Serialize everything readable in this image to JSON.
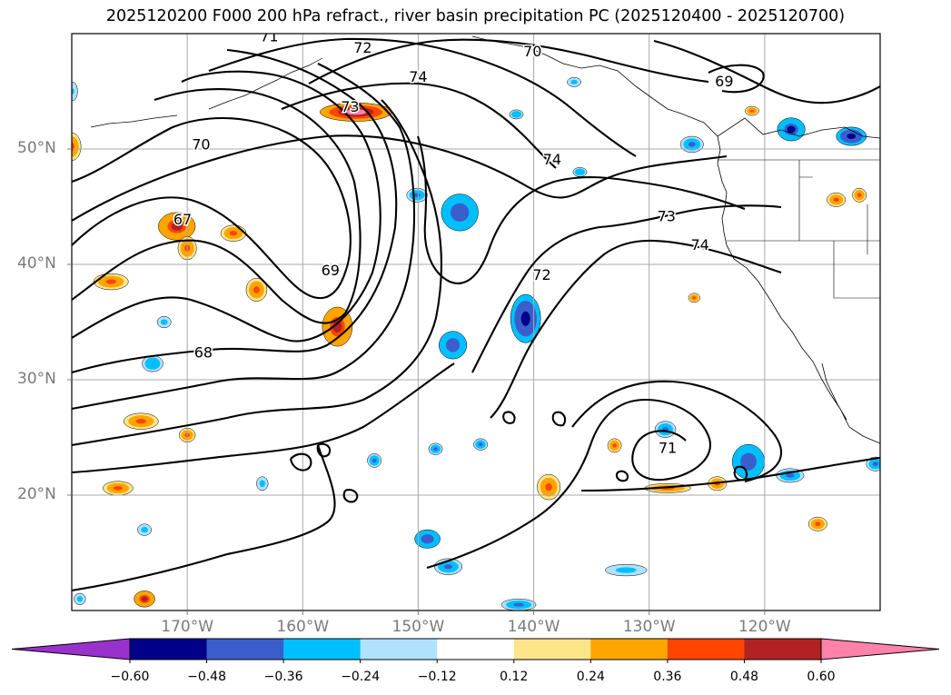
{
  "title": "2025120200 F000 200 hPa refract., river basin precipitation PC (2025120400 - 2025120700)",
  "chart_data": {
    "type": "contour-map",
    "map_extent": {
      "lon": [
        -180,
        -110
      ],
      "lat": [
        10,
        60
      ]
    },
    "lat_ticks": [
      {
        "value": 50,
        "label": "50°N"
      },
      {
        "value": 40,
        "label": "40°N"
      },
      {
        "value": 30,
        "label": "30°N"
      },
      {
        "value": 20,
        "label": "20°N"
      }
    ],
    "lon_ticks": [
      {
        "value": -170,
        "label": "170°W"
      },
      {
        "value": -160,
        "label": "160°W"
      },
      {
        "value": -150,
        "label": "150°W"
      },
      {
        "value": -140,
        "label": "140°W"
      },
      {
        "value": -130,
        "label": "130°W"
      },
      {
        "value": -120,
        "label": "120°W"
      }
    ],
    "refractivity_contours": {
      "variable": "200 hPa refractivity",
      "labels": [
        {
          "text": "71",
          "lon": -162.9,
          "lat": 59.7
        },
        {
          "text": "72",
          "lon": -154.8,
          "lat": 58.7
        },
        {
          "text": "70",
          "lon": -140.1,
          "lat": 58.4
        },
        {
          "text": "74",
          "lon": -150.0,
          "lat": 56.2
        },
        {
          "text": "69",
          "lon": -123.5,
          "lat": 55.8
        },
        {
          "text": "73",
          "lon": -155.9,
          "lat": 53.6
        },
        {
          "text": "70",
          "lon": -168.8,
          "lat": 50.3
        },
        {
          "text": "74",
          "lon": -138.4,
          "lat": 49.0
        },
        {
          "text": "67",
          "lon": -170.4,
          "lat": 43.8
        },
        {
          "text": "73",
          "lon": -128.5,
          "lat": 44.1
        },
        {
          "text": "74",
          "lon": -125.6,
          "lat": 41.6
        },
        {
          "text": "69",
          "lon": -157.6,
          "lat": 39.4
        },
        {
          "text": "72",
          "lon": -139.3,
          "lat": 39.0
        },
        {
          "text": "68",
          "lon": -168.6,
          "lat": 32.3
        },
        {
          "text": "71",
          "lon": -128.4,
          "lat": 24.0
        }
      ]
    },
    "precip_pc": {
      "variable": "river basin precipitation PC",
      "colorbar": {
        "boundaries": [
          -0.6,
          -0.48,
          -0.36,
          -0.24,
          -0.12,
          0.12,
          0.24,
          0.36,
          0.48,
          0.6
        ],
        "tick_labels": [
          "−0.60",
          "−0.48",
          "−0.36",
          "−0.24",
          "−0.12",
          "0.12",
          "0.24",
          "0.36",
          "0.48",
          "0.60"
        ],
        "colors": [
          "#9932cc",
          "#00008b",
          "#3a5fcd",
          "#00bfff",
          "#b0e2ff",
          "#ffffff",
          "#fee58a",
          "#ffa500",
          "#ff4500",
          "#b22222",
          "#ff82ab"
        ],
        "extend": "both"
      },
      "features": [
        {
          "lon": -155.4,
          "lat": 53.2,
          "rx": 3.1,
          "ry": 0.8,
          "level": 0.62
        },
        {
          "lon": -170.9,
          "lat": 43.3,
          "rx": 1.6,
          "ry": 1.2,
          "level": 0.5
        },
        {
          "lon": -176.6,
          "lat": 38.5,
          "rx": 1.5,
          "ry": 0.7,
          "level": 0.42
        },
        {
          "lon": -170.0,
          "lat": 41.4,
          "rx": 0.8,
          "ry": 1.0,
          "level": 0.4
        },
        {
          "lon": -166.0,
          "lat": 42.7,
          "rx": 1.1,
          "ry": 0.7,
          "level": 0.4
        },
        {
          "lon": -164.0,
          "lat": 37.8,
          "rx": 0.9,
          "ry": 1.0,
          "level": 0.42
        },
        {
          "lon": -157.0,
          "lat": 34.6,
          "rx": 1.3,
          "ry": 1.7,
          "level": 0.5
        },
        {
          "lon": -180.0,
          "lat": 50.2,
          "rx": 0.8,
          "ry": 1.2,
          "level": 0.42
        },
        {
          "lon": -174.0,
          "lat": 26.4,
          "rx": 1.5,
          "ry": 0.7,
          "level": 0.42
        },
        {
          "lon": -176.0,
          "lat": 20.6,
          "rx": 1.3,
          "ry": 0.6,
          "level": 0.4
        },
        {
          "lon": -170.0,
          "lat": 25.2,
          "rx": 0.7,
          "ry": 0.6,
          "level": 0.38
        },
        {
          "lon": -173.7,
          "lat": 11.0,
          "rx": 0.9,
          "ry": 0.7,
          "level": 0.48
        },
        {
          "lon": -138.7,
          "lat": 20.7,
          "rx": 1.0,
          "ry": 1.1,
          "level": 0.38
        },
        {
          "lon": -128.4,
          "lat": 20.6,
          "rx": 2.0,
          "ry": 0.4,
          "level": 0.38
        },
        {
          "lon": -124.1,
          "lat": 21.0,
          "rx": 0.8,
          "ry": 0.6,
          "level": 0.42
        },
        {
          "lon": -115.4,
          "lat": 17.5,
          "rx": 0.8,
          "ry": 0.6,
          "level": 0.4
        },
        {
          "lon": -113.8,
          "lat": 45.6,
          "rx": 0.8,
          "ry": 0.6,
          "level": 0.42
        },
        {
          "lon": -111.8,
          "lat": 46.0,
          "rx": 0.6,
          "ry": 0.6,
          "level": 0.42
        },
        {
          "lon": -121.1,
          "lat": 53.3,
          "rx": 0.6,
          "ry": 0.4,
          "level": 0.42
        },
        {
          "lon": -126.1,
          "lat": 37.1,
          "rx": 0.5,
          "ry": 0.4,
          "level": 0.42
        },
        {
          "lon": -133.0,
          "lat": 24.3,
          "rx": 0.6,
          "ry": 0.6,
          "level": 0.4
        },
        {
          "lon": -147.0,
          "lat": 33.0,
          "rx": 1.2,
          "ry": 1.2,
          "level": -0.46
        },
        {
          "lon": -140.7,
          "lat": 35.3,
          "rx": 1.3,
          "ry": 2.1,
          "level": -0.55
        },
        {
          "lon": -146.4,
          "lat": 44.5,
          "rx": 1.6,
          "ry": 1.6,
          "level": -0.45
        },
        {
          "lon": -150.1,
          "lat": 46.0,
          "rx": 0.9,
          "ry": 0.6,
          "level": -0.4
        },
        {
          "lon": -112.5,
          "lat": 51.1,
          "rx": 1.3,
          "ry": 0.8,
          "level": -0.55
        },
        {
          "lon": -117.7,
          "lat": 51.7,
          "rx": 1.2,
          "ry": 1.0,
          "level": -0.5
        },
        {
          "lon": -126.3,
          "lat": 50.4,
          "rx": 1.0,
          "ry": 0.7,
          "level": -0.42
        },
        {
          "lon": -121.4,
          "lat": 22.9,
          "rx": 1.4,
          "ry": 1.5,
          "level": -0.46
        },
        {
          "lon": -117.8,
          "lat": 21.7,
          "rx": 1.2,
          "ry": 0.6,
          "level": -0.42
        },
        {
          "lon": -128.6,
          "lat": 25.7,
          "rx": 0.9,
          "ry": 0.7,
          "level": -0.38
        },
        {
          "lon": -149.2,
          "lat": 16.2,
          "rx": 1.1,
          "ry": 0.8,
          "level": -0.46
        },
        {
          "lon": -147.4,
          "lat": 13.8,
          "rx": 1.2,
          "ry": 0.7,
          "level": -0.4
        },
        {
          "lon": -141.3,
          "lat": 10.5,
          "rx": 1.5,
          "ry": 0.5,
          "level": -0.4
        },
        {
          "lon": -132.0,
          "lat": 13.5,
          "rx": 1.8,
          "ry": 0.5,
          "level": -0.3
        },
        {
          "lon": -173.0,
          "lat": 31.4,
          "rx": 0.9,
          "ry": 0.7,
          "level": -0.35
        },
        {
          "lon": -173.7,
          "lat": 17.0,
          "rx": 0.6,
          "ry": 0.5,
          "level": -0.3
        },
        {
          "lon": -179.3,
          "lat": 11.0,
          "rx": 0.5,
          "ry": 0.5,
          "level": -0.32
        },
        {
          "lon": -144.6,
          "lat": 24.4,
          "rx": 0.6,
          "ry": 0.5,
          "level": -0.4
        },
        {
          "lon": -148.5,
          "lat": 24.0,
          "rx": 0.6,
          "ry": 0.5,
          "level": -0.4
        },
        {
          "lon": -153.8,
          "lat": 23.0,
          "rx": 0.6,
          "ry": 0.6,
          "level": -0.38
        },
        {
          "lon": -163.5,
          "lat": 21.0,
          "rx": 0.5,
          "ry": 0.6,
          "level": -0.32
        },
        {
          "lon": -179.9,
          "lat": 55.0,
          "rx": 0.4,
          "ry": 0.8,
          "level": -0.28
        },
        {
          "lon": -136.0,
          "lat": 48.0,
          "rx": 0.6,
          "ry": 0.4,
          "level": -0.36
        },
        {
          "lon": -141.5,
          "lat": 53.0,
          "rx": 0.6,
          "ry": 0.4,
          "level": -0.36
        },
        {
          "lon": -136.5,
          "lat": 55.8,
          "rx": 0.6,
          "ry": 0.4,
          "level": -0.3
        },
        {
          "lon": -172.0,
          "lat": 35.0,
          "rx": 0.6,
          "ry": 0.5,
          "level": -0.32
        },
        {
          "lon": -110.4,
          "lat": 22.7,
          "rx": 0.8,
          "ry": 0.6,
          "level": -0.38
        }
      ]
    }
  }
}
